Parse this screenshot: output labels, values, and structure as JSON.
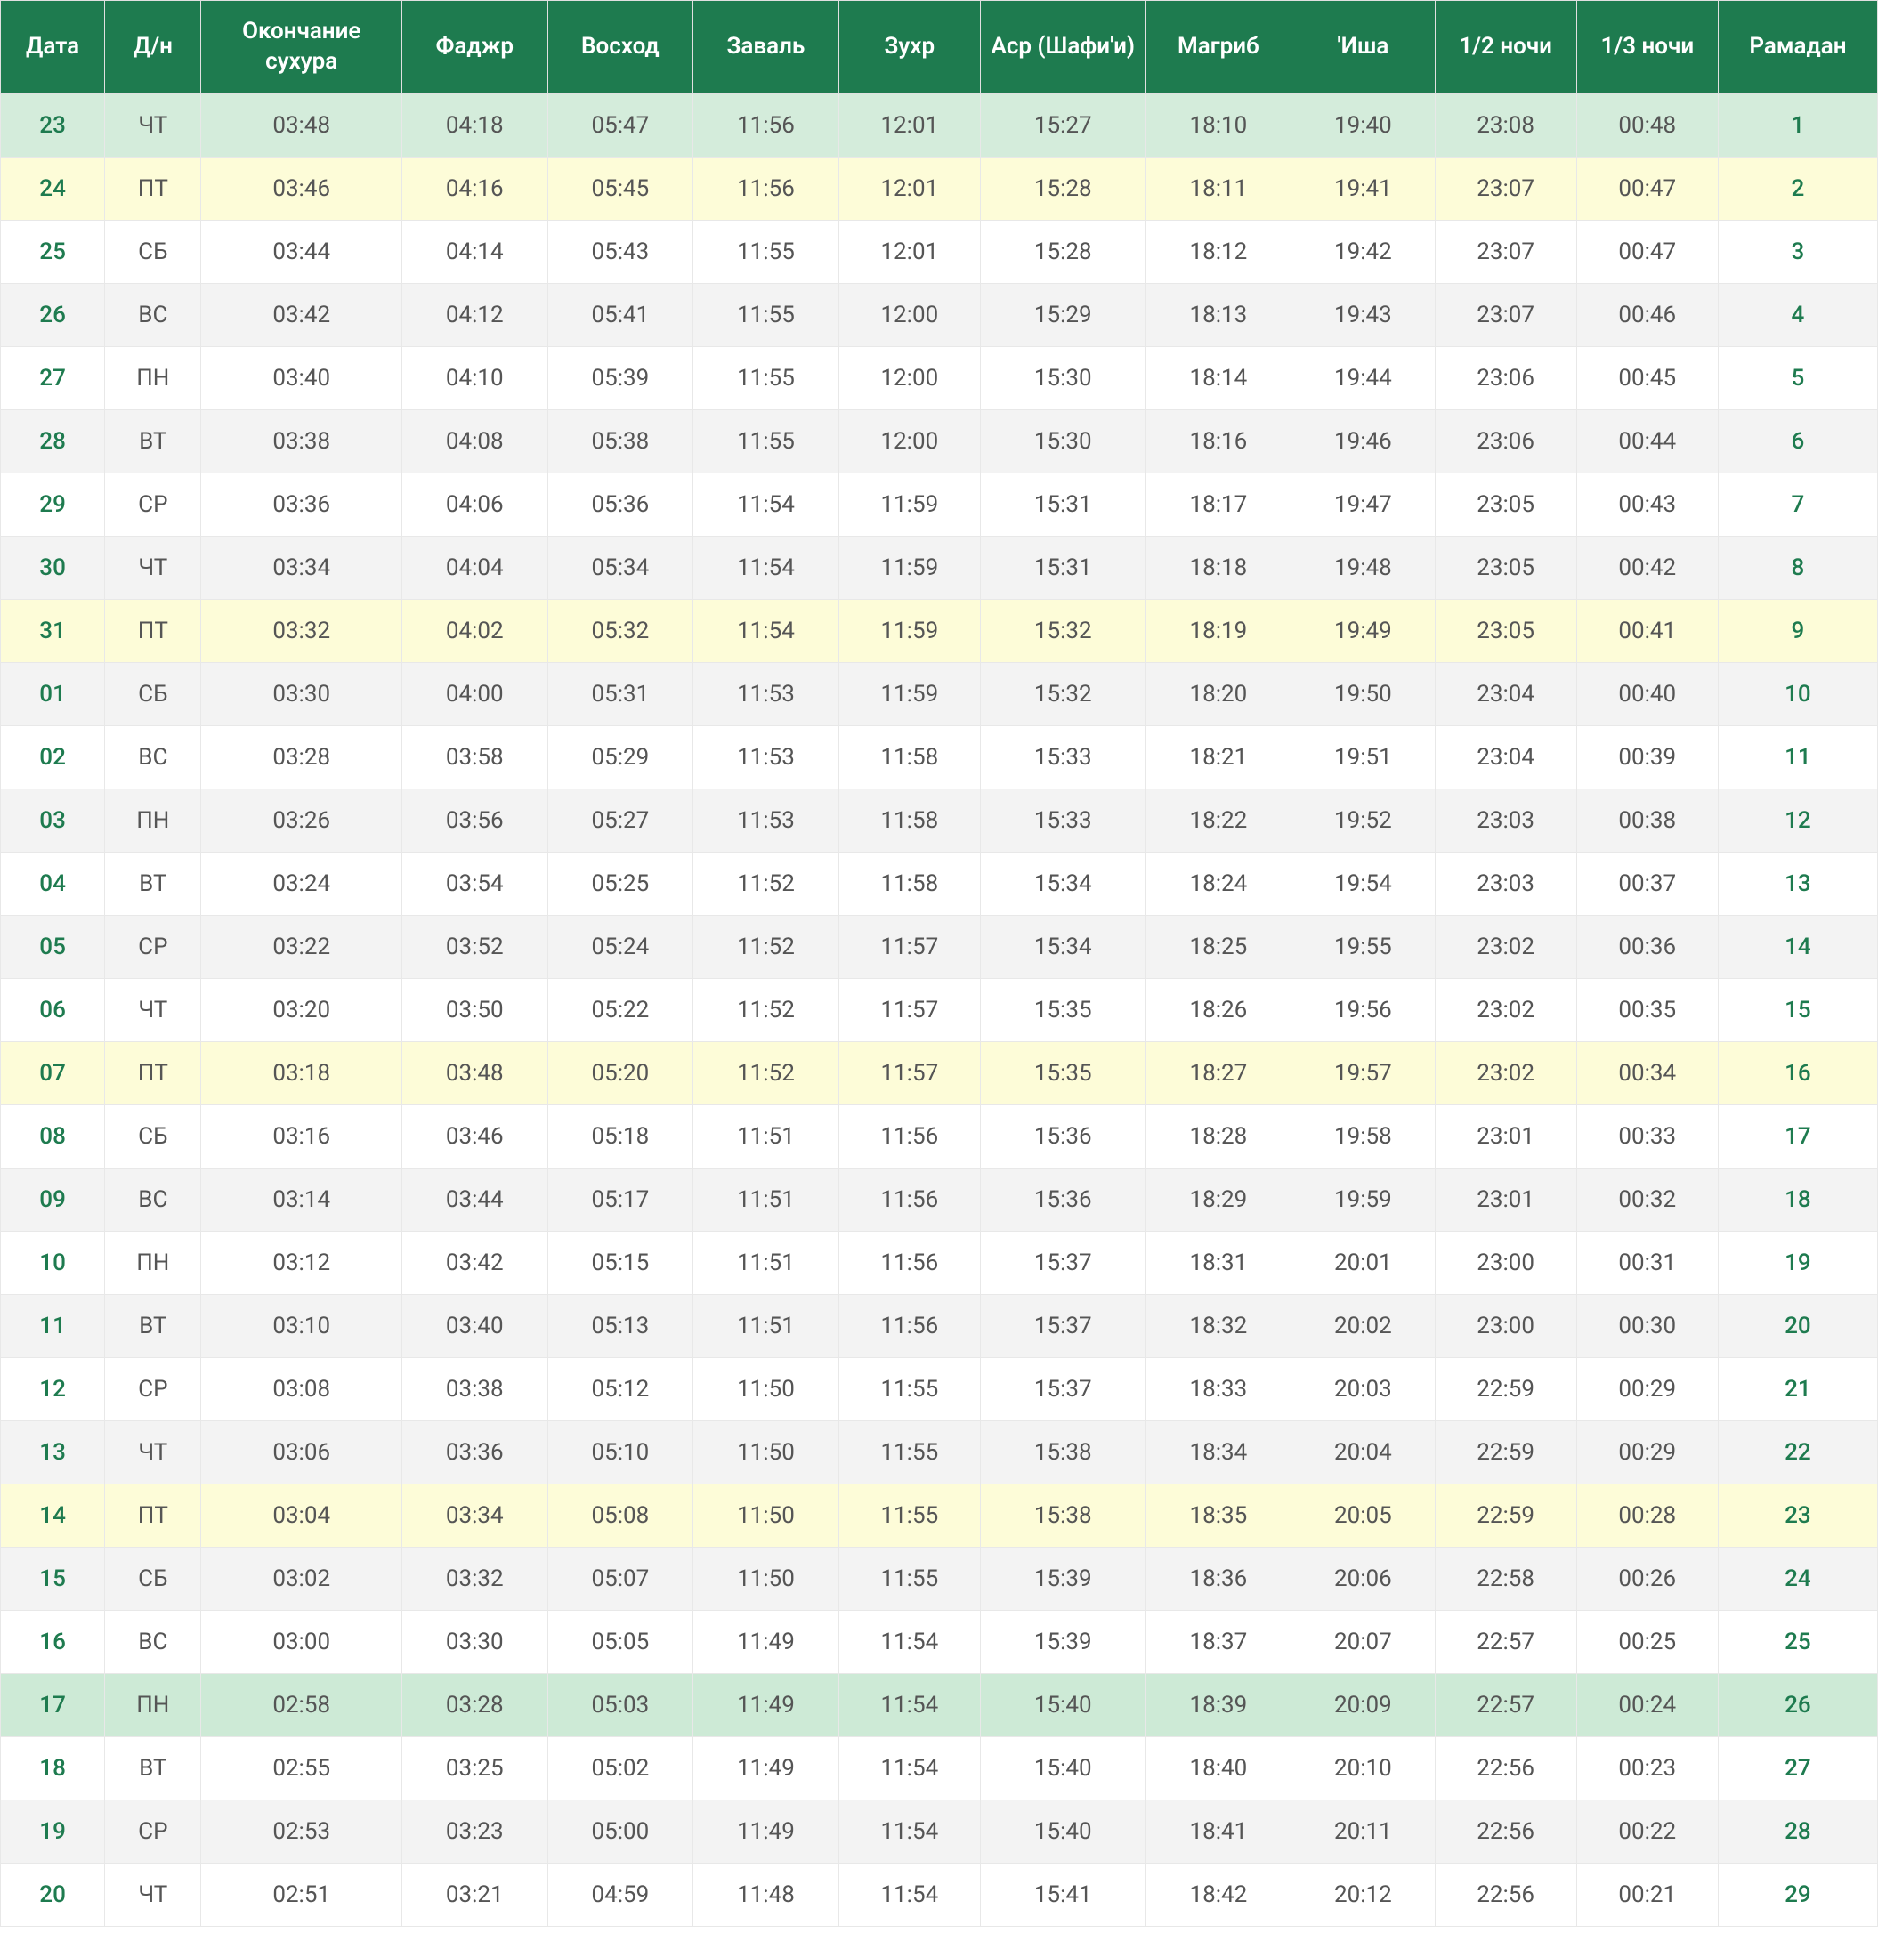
{
  "table": {
    "type": "table",
    "header_bg": "#1e7b4f",
    "header_color": "#ffffff",
    "accent_color": "#1e7b4f",
    "row_white_bg": "#ffffff",
    "row_gray_bg": "#f3f3f3",
    "row_yellow_bg": "#fdfcd8",
    "row_green_bg": "#d4ecdb",
    "row_green2_bg": "#cdead6",
    "border_color": "#e8e8e8",
    "header_fontsize": 26,
    "cell_fontsize": 26,
    "columns": [
      {
        "key": "date",
        "label": "Дата",
        "accent": true
      },
      {
        "key": "dow",
        "label": "Д/н",
        "accent": false
      },
      {
        "key": "suhur",
        "label": "Окончание сухура",
        "accent": false
      },
      {
        "key": "fajr",
        "label": "Фаджр",
        "accent": false
      },
      {
        "key": "vosh",
        "label": "Восход",
        "accent": false
      },
      {
        "key": "zaval",
        "label": "Заваль",
        "accent": false
      },
      {
        "key": "zuhr",
        "label": "Зухр",
        "accent": false
      },
      {
        "key": "asr",
        "label": "Аср (Шафи'и)",
        "accent": false
      },
      {
        "key": "magrib",
        "label": "Магриб",
        "accent": false
      },
      {
        "key": "isha",
        "label": "'Иша",
        "accent": false
      },
      {
        "key": "half",
        "label": "1/2 ночи",
        "accent": false
      },
      {
        "key": "third",
        "label": "1/3 ночи",
        "accent": false
      },
      {
        "key": "ram",
        "label": "Рамадан",
        "accent": true
      }
    ],
    "rows": [
      {
        "style": "green",
        "cells": [
          "23",
          "ЧТ",
          "03:48",
          "04:18",
          "05:47",
          "11:56",
          "12:01",
          "15:27",
          "18:10",
          "19:40",
          "23:08",
          "00:48",
          "1"
        ]
      },
      {
        "style": "yellow",
        "cells": [
          "24",
          "ПТ",
          "03:46",
          "04:16",
          "05:45",
          "11:56",
          "12:01",
          "15:28",
          "18:11",
          "19:41",
          "23:07",
          "00:47",
          "2"
        ]
      },
      {
        "style": "white",
        "cells": [
          "25",
          "СБ",
          "03:44",
          "04:14",
          "05:43",
          "11:55",
          "12:01",
          "15:28",
          "18:12",
          "19:42",
          "23:07",
          "00:47",
          "3"
        ]
      },
      {
        "style": "gray",
        "cells": [
          "26",
          "ВС",
          "03:42",
          "04:12",
          "05:41",
          "11:55",
          "12:00",
          "15:29",
          "18:13",
          "19:43",
          "23:07",
          "00:46",
          "4"
        ]
      },
      {
        "style": "white",
        "cells": [
          "27",
          "ПН",
          "03:40",
          "04:10",
          "05:39",
          "11:55",
          "12:00",
          "15:30",
          "18:14",
          "19:44",
          "23:06",
          "00:45",
          "5"
        ]
      },
      {
        "style": "gray",
        "cells": [
          "28",
          "ВТ",
          "03:38",
          "04:08",
          "05:38",
          "11:55",
          "12:00",
          "15:30",
          "18:16",
          "19:46",
          "23:06",
          "00:44",
          "6"
        ]
      },
      {
        "style": "white",
        "cells": [
          "29",
          "СР",
          "03:36",
          "04:06",
          "05:36",
          "11:54",
          "11:59",
          "15:31",
          "18:17",
          "19:47",
          "23:05",
          "00:43",
          "7"
        ]
      },
      {
        "style": "gray",
        "cells": [
          "30",
          "ЧТ",
          "03:34",
          "04:04",
          "05:34",
          "11:54",
          "11:59",
          "15:31",
          "18:18",
          "19:48",
          "23:05",
          "00:42",
          "8"
        ]
      },
      {
        "style": "yellow",
        "cells": [
          "31",
          "ПТ",
          "03:32",
          "04:02",
          "05:32",
          "11:54",
          "11:59",
          "15:32",
          "18:19",
          "19:49",
          "23:05",
          "00:41",
          "9"
        ]
      },
      {
        "style": "gray",
        "cells": [
          "01",
          "СБ",
          "03:30",
          "04:00",
          "05:31",
          "11:53",
          "11:59",
          "15:32",
          "18:20",
          "19:50",
          "23:04",
          "00:40",
          "10"
        ]
      },
      {
        "style": "white",
        "cells": [
          "02",
          "ВС",
          "03:28",
          "03:58",
          "05:29",
          "11:53",
          "11:58",
          "15:33",
          "18:21",
          "19:51",
          "23:04",
          "00:39",
          "11"
        ]
      },
      {
        "style": "gray",
        "cells": [
          "03",
          "ПН",
          "03:26",
          "03:56",
          "05:27",
          "11:53",
          "11:58",
          "15:33",
          "18:22",
          "19:52",
          "23:03",
          "00:38",
          "12"
        ]
      },
      {
        "style": "white",
        "cells": [
          "04",
          "ВТ",
          "03:24",
          "03:54",
          "05:25",
          "11:52",
          "11:58",
          "15:34",
          "18:24",
          "19:54",
          "23:03",
          "00:37",
          "13"
        ]
      },
      {
        "style": "gray",
        "cells": [
          "05",
          "СР",
          "03:22",
          "03:52",
          "05:24",
          "11:52",
          "11:57",
          "15:34",
          "18:25",
          "19:55",
          "23:02",
          "00:36",
          "14"
        ]
      },
      {
        "style": "white",
        "cells": [
          "06",
          "ЧТ",
          "03:20",
          "03:50",
          "05:22",
          "11:52",
          "11:57",
          "15:35",
          "18:26",
          "19:56",
          "23:02",
          "00:35",
          "15"
        ]
      },
      {
        "style": "yellow",
        "cells": [
          "07",
          "ПТ",
          "03:18",
          "03:48",
          "05:20",
          "11:52",
          "11:57",
          "15:35",
          "18:27",
          "19:57",
          "23:02",
          "00:34",
          "16"
        ]
      },
      {
        "style": "white",
        "cells": [
          "08",
          "СБ",
          "03:16",
          "03:46",
          "05:18",
          "11:51",
          "11:56",
          "15:36",
          "18:28",
          "19:58",
          "23:01",
          "00:33",
          "17"
        ]
      },
      {
        "style": "gray",
        "cells": [
          "09",
          "ВС",
          "03:14",
          "03:44",
          "05:17",
          "11:51",
          "11:56",
          "15:36",
          "18:29",
          "19:59",
          "23:01",
          "00:32",
          "18"
        ]
      },
      {
        "style": "white",
        "cells": [
          "10",
          "ПН",
          "03:12",
          "03:42",
          "05:15",
          "11:51",
          "11:56",
          "15:37",
          "18:31",
          "20:01",
          "23:00",
          "00:31",
          "19"
        ]
      },
      {
        "style": "gray",
        "cells": [
          "11",
          "ВТ",
          "03:10",
          "03:40",
          "05:13",
          "11:51",
          "11:56",
          "15:37",
          "18:32",
          "20:02",
          "23:00",
          "00:30",
          "20"
        ]
      },
      {
        "style": "white",
        "cells": [
          "12",
          "СР",
          "03:08",
          "03:38",
          "05:12",
          "11:50",
          "11:55",
          "15:37",
          "18:33",
          "20:03",
          "22:59",
          "00:29",
          "21"
        ]
      },
      {
        "style": "gray",
        "cells": [
          "13",
          "ЧТ",
          "03:06",
          "03:36",
          "05:10",
          "11:50",
          "11:55",
          "15:38",
          "18:34",
          "20:04",
          "22:59",
          "00:29",
          "22"
        ]
      },
      {
        "style": "yellow",
        "cells": [
          "14",
          "ПТ",
          "03:04",
          "03:34",
          "05:08",
          "11:50",
          "11:55",
          "15:38",
          "18:35",
          "20:05",
          "22:59",
          "00:28",
          "23"
        ]
      },
      {
        "style": "gray",
        "cells": [
          "15",
          "СБ",
          "03:02",
          "03:32",
          "05:07",
          "11:50",
          "11:55",
          "15:39",
          "18:36",
          "20:06",
          "22:58",
          "00:26",
          "24"
        ]
      },
      {
        "style": "white",
        "cells": [
          "16",
          "ВС",
          "03:00",
          "03:30",
          "05:05",
          "11:49",
          "11:54",
          "15:39",
          "18:37",
          "20:07",
          "22:57",
          "00:25",
          "25"
        ]
      },
      {
        "style": "green2",
        "cells": [
          "17",
          "ПН",
          "02:58",
          "03:28",
          "05:03",
          "11:49",
          "11:54",
          "15:40",
          "18:39",
          "20:09",
          "22:57",
          "00:24",
          "26"
        ]
      },
      {
        "style": "white",
        "cells": [
          "18",
          "ВТ",
          "02:55",
          "03:25",
          "05:02",
          "11:49",
          "11:54",
          "15:40",
          "18:40",
          "20:10",
          "22:56",
          "00:23",
          "27"
        ]
      },
      {
        "style": "gray",
        "cells": [
          "19",
          "СР",
          "02:53",
          "03:23",
          "05:00",
          "11:49",
          "11:54",
          "15:40",
          "18:41",
          "20:11",
          "22:56",
          "00:22",
          "28"
        ]
      },
      {
        "style": "white",
        "cells": [
          "20",
          "ЧТ",
          "02:51",
          "03:21",
          "04:59",
          "11:48",
          "11:54",
          "15:41",
          "18:42",
          "20:12",
          "22:56",
          "00:21",
          "29"
        ]
      }
    ]
  }
}
